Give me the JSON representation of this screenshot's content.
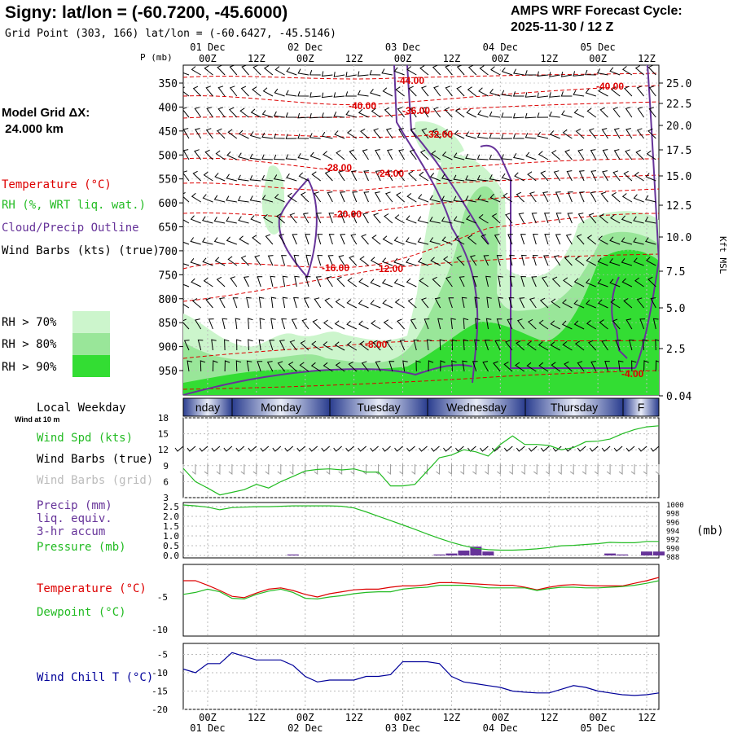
{
  "header": {
    "title": "Signy:  lat/lon = (-60.7200, -45.6000)",
    "subtitle": "Grid Point (303, 166) lat/lon = (-60.6427, -45.5146)",
    "cycle_line1": "AMPS WRF Forecast Cycle:",
    "cycle_line2": "2025-11-30 / 12  Z",
    "pressure_unit": "P (mb)",
    "height_unit": "Kft MSL"
  },
  "legend": {
    "model_grid_line1": "Model Grid ΔX:",
    "model_grid_line2": " 24.000 km",
    "temperature": "Temperature (°C)",
    "rh": "RH (%, WRT liq. wat.)",
    "cloud": "Cloud/Precip Outline",
    "wind_barbs": "Wind Barbs (kts) (true)",
    "rh70": "RH > 70%",
    "rh80": "RH > 80%",
    "rh90": "RH > 90%"
  },
  "colors": {
    "temperature": "#dd0000",
    "rh": "#22bb22",
    "cloud": "#663399",
    "rh70": "#ccf5cc",
    "rh80": "#99e699",
    "rh90": "#33dd33",
    "wind_chill": "#000099",
    "grid": "#bbbbbb"
  },
  "time_axis": {
    "top_dates": [
      "01 Dec",
      "02 Dec",
      "03 Dec",
      "04 Dec",
      "05 Dec"
    ],
    "hours": [
      "00Z",
      "12Z",
      "00Z",
      "12Z",
      "00Z",
      "12Z",
      "00Z",
      "12Z",
      "00Z",
      "12Z"
    ],
    "bottom_dates": [
      "01 Dec",
      "02 Dec",
      "03 Dec",
      "04 Dec",
      "05 Dec"
    ]
  },
  "weekday_bar": {
    "label": "Local Weekday",
    "days": [
      "nday",
      "Monday",
      "Tuesday",
      "Wednesday",
      "Thursday",
      "F"
    ]
  },
  "panel_labels": {
    "wind_at_10m": "Wind at 10 m",
    "wind_spd": "Wind Spd (kts)",
    "wind_barbs_true": "Wind Barbs (true)",
    "wind_barbs_grid": "Wind Barbs (grid)",
    "precip1": "Precip (mm)",
    "precip2": "liq. equiv.",
    "precip3": "3-hr accum",
    "pressure": "Pressure (mb)",
    "pressure_unit": "(mb)",
    "temperature": "Temperature (°C)",
    "dewpoint": "Dewpoint (°C)",
    "wind_chill": "Wind Chill T (°C)"
  },
  "chart_data": [
    {
      "type": "contour",
      "title": "Time-height cross section",
      "y_axis": {
        "label": "P (mb)",
        "ticks": [
          350,
          400,
          450,
          500,
          550,
          600,
          650,
          700,
          750,
          800,
          850,
          900,
          950
        ]
      },
      "y2_axis": {
        "label": "Kft MSL",
        "ticks": [
          "25.0",
          "22.5",
          "20.0",
          "17.5",
          "15.0",
          "12.5",
          "10.0",
          "7.5",
          "5.0",
          "2.5",
          "0.04"
        ]
      },
      "temperature_contours": [
        "-44.00",
        "-40.00",
        "-40.00",
        "-36.00",
        "-32.00",
        "-28.00",
        "-24.00",
        "-20.00",
        "-16.00",
        "-12.00",
        "-8.00",
        "-4.00"
      ],
      "x_range_hours": [
        0,
        116
      ]
    },
    {
      "type": "line",
      "title": "Wind Spd (kts)",
      "yticks": [
        "18",
        "15",
        "12",
        "9",
        "6",
        "3"
      ],
      "ylim": [
        3,
        18
      ],
      "x_hours": [
        0,
        3,
        6,
        9,
        12,
        15,
        18,
        21,
        24,
        27,
        30,
        33,
        36,
        39,
        42,
        45,
        48,
        51,
        54,
        57,
        60,
        63,
        66,
        69,
        72,
        75,
        78,
        81,
        84,
        87,
        90,
        93,
        96,
        99,
        102,
        105,
        108,
        111,
        114,
        117
      ],
      "wind_speed": [
        8.5,
        6,
        4.8,
        3.5,
        4,
        4.5,
        5.5,
        4.8,
        6,
        7,
        8,
        8.3,
        8.4,
        8.2,
        8.4,
        7.8,
        7.8,
        5.2,
        5.2,
        5.5,
        8,
        10.5,
        11,
        12,
        11.6,
        10.8,
        13,
        14.6,
        13,
        13,
        12.8,
        12,
        12.4,
        13.5,
        13.6,
        14,
        15,
        15.8,
        16.3,
        16.5
      ]
    },
    {
      "type": "line+bar",
      "title": "Precip and Pressure",
      "precip_yticks": [
        "2.5",
        "2.0",
        "1.5",
        "1.0",
        "0.5",
        "0.0"
      ],
      "precip_ylim": [
        0,
        2.5
      ],
      "pressure_yticks": [
        "1000",
        "998",
        "996",
        "994",
        "992",
        "990",
        "988"
      ],
      "pressure_ylim": [
        988,
        1000
      ],
      "x_hours": [
        0,
        3,
        6,
        9,
        12,
        15,
        18,
        21,
        24,
        27,
        30,
        33,
        36,
        39,
        42,
        45,
        48,
        51,
        54,
        57,
        60,
        63,
        66,
        69,
        72,
        75,
        78,
        81,
        84,
        87,
        90,
        93,
        96,
        99,
        102,
        105,
        108,
        111,
        114,
        117
      ],
      "pressure": [
        1000,
        999.8,
        999.5,
        998.9,
        999.4,
        999.5,
        999.6,
        999.6,
        999.7,
        999.8,
        999.8,
        999.8,
        999.8,
        999.7,
        999.3,
        998.4,
        997.4,
        996.4,
        995.4,
        994.4,
        993.3,
        992.3,
        991.4,
        990.6,
        990.0,
        989.7,
        989.6,
        989.6,
        989.7,
        989.9,
        990.2,
        990.6,
        990.7,
        990.9,
        991.1,
        991.4,
        991.3,
        991.3,
        991.6,
        991.6
      ],
      "precip": [
        0,
        0,
        0,
        0,
        0,
        0,
        0,
        0,
        0,
        0.05,
        0,
        0,
        0,
        0,
        0,
        0,
        0,
        0,
        0,
        0,
        0,
        0.05,
        0.1,
        0.25,
        0.45,
        0.2,
        0,
        0,
        0,
        0,
        0,
        0,
        0,
        0,
        0,
        0.1,
        0.05,
        0,
        0.2,
        0.2
      ]
    },
    {
      "type": "line",
      "title": "Temperature / Dewpoint (°C)",
      "yticks": [
        "-5",
        "-10"
      ],
      "ylim": [
        -11,
        0
      ],
      "x_hours": [
        0,
        3,
        6,
        9,
        12,
        15,
        18,
        21,
        24,
        27,
        30,
        33,
        36,
        39,
        42,
        45,
        48,
        51,
        54,
        57,
        60,
        63,
        66,
        69,
        72,
        75,
        78,
        81,
        84,
        87,
        90,
        93,
        96,
        99,
        102,
        105,
        108,
        111,
        114,
        117
      ],
      "temperature": [
        -2.5,
        -2.5,
        -3.2,
        -4.0,
        -4.9,
        -5.1,
        -4.4,
        -3.8,
        -3.6,
        -4.0,
        -4.6,
        -5.0,
        -4.5,
        -4.2,
        -3.9,
        -3.8,
        -3.8,
        -3.5,
        -3.3,
        -3.3,
        -3.1,
        -2.8,
        -2.8,
        -2.9,
        -3.0,
        -3.1,
        -3.2,
        -3.2,
        -3.5,
        -3.9,
        -3.5,
        -3.2,
        -3.1,
        -3.2,
        -3.3,
        -3.3,
        -3.3,
        -2.9,
        -2.5,
        -2.0
      ],
      "dewpoint": [
        -4.6,
        -4.3,
        -3.8,
        -4.2,
        -5.2,
        -5.3,
        -4.6,
        -4.1,
        -3.8,
        -4.3,
        -5.2,
        -5.3,
        -5.0,
        -4.8,
        -4.5,
        -4.3,
        -4.2,
        -4.2,
        -3.8,
        -3.6,
        -3.5,
        -3.2,
        -3.2,
        -3.2,
        -3.4,
        -3.6,
        -3.6,
        -3.6,
        -3.6,
        -4.0,
        -3.7,
        -3.5,
        -3.5,
        -3.6,
        -3.6,
        -3.5,
        -3.4,
        -3.2,
        -2.9,
        -2.5
      ]
    },
    {
      "type": "line",
      "title": "Wind Chill T (°C)",
      "yticks": [
        "-5",
        "-10",
        "-15",
        "-20"
      ],
      "ylim": [
        -20,
        -2
      ],
      "x_hours": [
        0,
        3,
        6,
        9,
        12,
        15,
        18,
        21,
        24,
        27,
        30,
        33,
        36,
        39,
        42,
        45,
        48,
        51,
        54,
        57,
        60,
        63,
        66,
        69,
        72,
        75,
        78,
        81,
        84,
        87,
        90,
        93,
        96,
        99,
        102,
        105,
        108,
        111,
        114,
        117
      ],
      "wind_chill": [
        -9,
        -10,
        -7.5,
        -7.5,
        -4.5,
        -5.5,
        -6.5,
        -6.5,
        -6.5,
        -8,
        -11,
        -12.5,
        -12,
        -12,
        -12,
        -11,
        -11,
        -10.5,
        -7,
        -7,
        -7,
        -7.5,
        -11,
        -12.5,
        -13,
        -13.5,
        -14,
        -15,
        -15.3,
        -15.5,
        -15.5,
        -14.5,
        -13.5,
        -14,
        -15,
        -15.5,
        -16,
        -16.2,
        -16,
        -15.5
      ]
    }
  ]
}
